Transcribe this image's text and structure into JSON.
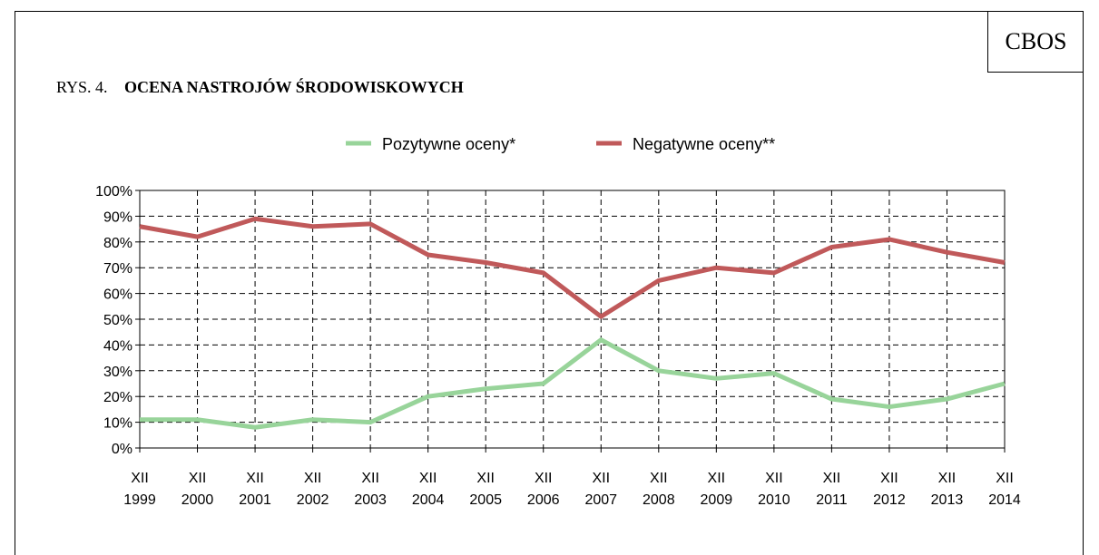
{
  "source_label": "CBOS",
  "figure": {
    "number": "RYS. 4.",
    "title": "OCENA NASTROJÓW ŚRODOWISKOWYCH"
  },
  "colors": {
    "positive": "#98d49a",
    "negative": "#c0595a",
    "grid": "#000000"
  },
  "chart_data": {
    "type": "line",
    "title": "OCENA NASTROJÓW ŚRODOWISKOWYCH",
    "xlabel": "",
    "ylabel": "",
    "categories": [
      [
        "XII",
        "1999"
      ],
      [
        "XII",
        "2000"
      ],
      [
        "XII",
        "2001"
      ],
      [
        "XII",
        "2002"
      ],
      [
        "XII",
        "2003"
      ],
      [
        "XII",
        "2004"
      ],
      [
        "XII",
        "2005"
      ],
      [
        "XII",
        "2006"
      ],
      [
        "XII",
        "2007"
      ],
      [
        "XII",
        "2008"
      ],
      [
        "XII",
        "2009"
      ],
      [
        "XII",
        "2010"
      ],
      [
        "XII",
        "2011"
      ],
      [
        "XII",
        "2012"
      ],
      [
        "XII",
        "2013"
      ],
      [
        "XII",
        "2014"
      ]
    ],
    "y_ticks": [
      "0%",
      "10%",
      "20%",
      "30%",
      "40%",
      "50%",
      "60%",
      "70%",
      "80%",
      "90%",
      "100%"
    ],
    "ylim": [
      0,
      100
    ],
    "grid": true,
    "legend_position": "top-center",
    "series": [
      {
        "name": "Pozytywne oceny*",
        "color_key": "positive",
        "values": [
          11,
          11,
          8,
          11,
          10,
          20,
          23,
          25,
          42,
          30,
          27,
          29,
          19,
          16,
          19,
          25
        ]
      },
      {
        "name": "Negatywne oceny**",
        "color_key": "negative",
        "values": [
          86,
          82,
          89,
          86,
          87,
          75,
          72,
          68,
          51,
          65,
          70,
          68,
          78,
          81,
          76,
          72
        ]
      }
    ]
  }
}
